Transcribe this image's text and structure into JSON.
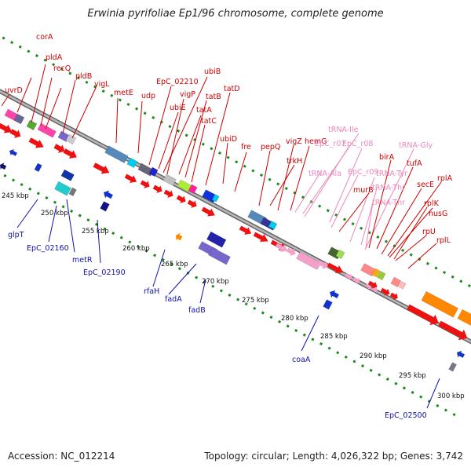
{
  "title": "Erwinia pyrifoliae Ep1/96 chromosome, complete genome",
  "footer": {
    "accession": "Accession: NC_012214",
    "summary": "Topology: circular; Length: 4,026,322 bp; Genes: 3,742"
  },
  "colors": {
    "forward_label": "#cc0000",
    "reverse_label": "#1111aa",
    "rna_label": "#ee88bb",
    "ruler": "#888888",
    "tick": "#1a8a1a"
  },
  "scale": {
    "unit": "kbp",
    "ticks": [
      "245 kbp",
      "250 kbp",
      "255 kbp",
      "260 kbp",
      "265 kbp",
      "270 kbp",
      "275 kbp",
      "280 kbp",
      "285 kbp",
      "290 kbp",
      "295 kbp",
      "300 kbp"
    ]
  },
  "forward_gene_labels": [
    "uvrD",
    "corA",
    "pldA",
    "recQ",
    "pldB",
    "yigL",
    "metE",
    "udp",
    "EpC_02210",
    "ubiB",
    "vigP",
    "ubiE",
    "tatB",
    "tatA",
    "tatD",
    "tatC",
    "ubiD",
    "fre",
    "pepQ",
    "vigZ",
    "trkH",
    "hemG",
    "murB",
    "birA",
    "tufA",
    "secE",
    "nusG",
    "rplA",
    "rplK",
    "rpU",
    "rplL"
  ],
  "rna_gene_labels": [
    "tRNA-Ile",
    "EpC_r07",
    "EpC_r08",
    "tRNA-Gly",
    "tRNA-Ala",
    "EpC_r09",
    "tRNA-Tyr",
    "tRNA-Thr",
    "tRNA-Thr"
  ],
  "reverse_gene_labels": [
    "glpT",
    "EpC_02160",
    "metR",
    "EpC_02190",
    "rfaH",
    "fadA",
    "fadB",
    "coaA",
    "EpC_02500"
  ]
}
